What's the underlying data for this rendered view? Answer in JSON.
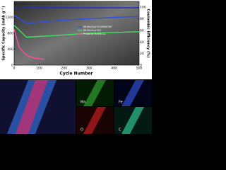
{
  "chart_data": {
    "type": "line",
    "xlabel": "Cycle Number",
    "ylabel": "Specific Capacity (mAh g⁻¹)",
    "y2label": "Coulombic Efficiency (%)",
    "xlim": [
      0,
      500
    ],
    "xticks": [
      0,
      100,
      200,
      300,
      400,
      500
    ],
    "ylim": [
      0,
      1600
    ],
    "yticks": [
      0,
      400,
      800,
      1200
    ],
    "y2lim": [
      0,
      110
    ],
    "y2ticks": [
      0,
      20,
      40,
      60,
      80,
      100
    ],
    "legend": "right",
    "series": [
      {
        "name": "MnFe₂O₄/rGO/MWCNT",
        "color": "#3050e0",
        "x": [
          0,
          50,
          100,
          150,
          200,
          250,
          300,
          350,
          400,
          450,
          500
        ],
        "values": [
          1250,
          1050,
          1080,
          1110,
          1130,
          1150,
          1170,
          1180,
          1200,
          1210,
          1220
        ]
      },
      {
        "name": "MnFe₂O₄/rGO",
        "color": "#40e060",
        "x": [
          0,
          50,
          100,
          150,
          200,
          250,
          300,
          350,
          400,
          450,
          500
        ],
        "values": [
          1000,
          700,
          720,
          740,
          760,
          780,
          800,
          810,
          820,
          830,
          840
        ]
      },
      {
        "name": "Pristine MnFe₂O₄",
        "color": "#ff4f9f",
        "x": [
          0,
          20,
          40,
          60,
          80,
          100,
          120
        ],
        "values": [
          900,
          450,
          300,
          220,
          180,
          160,
          150
        ]
      },
      {
        "name": "Coulombic Efficiency",
        "color": "#2030c0",
        "axis": "y2",
        "x": [
          0,
          50,
          100,
          150,
          200,
          250,
          300,
          350,
          400,
          450,
          500
        ],
        "values": [
          98,
          99,
          99,
          99,
          99,
          99,
          99,
          99,
          99,
          99,
          99
        ]
      }
    ]
  },
  "maps": {
    "labels": [
      "Mn",
      "Fe",
      "O",
      "C"
    ]
  }
}
